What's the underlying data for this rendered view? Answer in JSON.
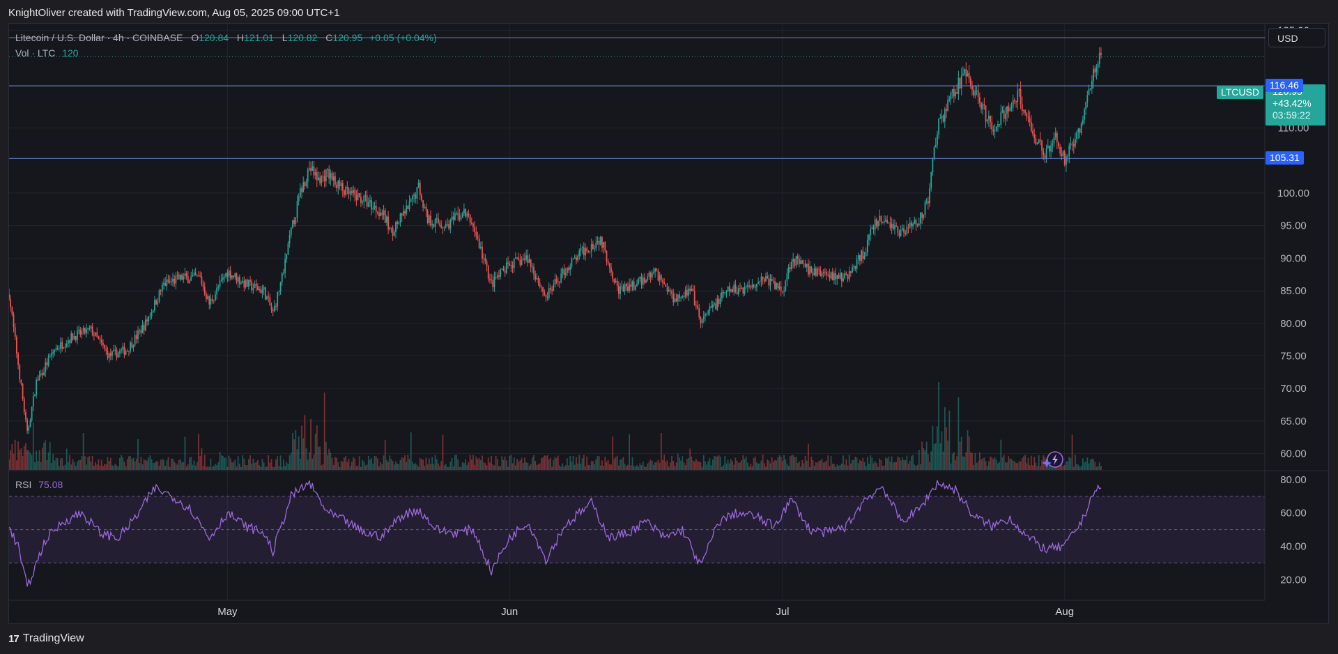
{
  "caption": "KnightOliver created with TradingView.com, Aug 05, 2025 09:00 UTC+1",
  "legend": {
    "symbol_name": "Litecoin / U.S. Dollar · 4h · COINBASE",
    "open_label": "O",
    "open": "120.84",
    "high_label": "H",
    "high": "121.01",
    "low_label": "L",
    "low": "120.82",
    "close_label": "C",
    "close": "120.95",
    "change": "+0.05 (+0.04%)",
    "volume_label": "Vol · LTC",
    "volume_value": "120",
    "rsi_label": "RSI",
    "rsi_value": "75.08"
  },
  "currency": "USD",
  "price_box": {
    "symbol": "LTCUSD",
    "last": "120.95",
    "change_pct": "+43.42%",
    "countdown": "03:59:22"
  },
  "horizontal_levels": [
    {
      "label": "116.46",
      "value": 116.46
    },
    {
      "label": "105.31",
      "value": 105.31
    }
  ],
  "footer_brand": "TradingView",
  "colors": {
    "background": "#16161d",
    "up": "#26a69a",
    "down": "#ef5350",
    "rsi_line": "#9c6ade",
    "level_line": "#5b7bd6",
    "level_tag": "#2962ff"
  },
  "chart_data": [
    {
      "type": "candlestick",
      "title": "Litecoin / U.S. Dollar · 4h · COINBASE",
      "ylim": [
        57.5,
        126
      ],
      "y_ticks": [
        125,
        110,
        100,
        95,
        90,
        85,
        80,
        75,
        70,
        65,
        60
      ],
      "y_tick_labels": [
        "125.00",
        "110.00",
        "100.00",
        "95.00",
        "90.00",
        "85.00",
        "80.00",
        "75.00",
        "70.00",
        "65.00",
        "60.00"
      ],
      "x_tick_labels": [
        "May",
        "Jun",
        "Jul",
        "Aug"
      ],
      "x_tick_dates": [
        "2025-05-01",
        "2025-06-01",
        "2025-07-01",
        "2025-08-01"
      ],
      "x_range": [
        "2025-04-07",
        "2025-08-23"
      ],
      "grid": true,
      "price_path": [
        [
          "2025-04-07",
          84.5
        ],
        [
          "2025-04-09",
          63
        ],
        [
          "2025-04-10",
          71
        ],
        [
          "2025-04-12",
          76
        ],
        [
          "2025-04-14",
          78
        ],
        [
          "2025-04-16",
          79
        ],
        [
          "2025-04-18",
          75
        ],
        [
          "2025-04-20",
          76
        ],
        [
          "2025-04-22",
          80
        ],
        [
          "2025-04-24",
          86
        ],
        [
          "2025-04-26",
          87
        ],
        [
          "2025-04-28",
          87
        ],
        [
          "2025-04-29",
          83
        ],
        [
          "2025-05-01",
          88
        ],
        [
          "2025-05-03",
          86
        ],
        [
          "2025-05-05",
          85
        ],
        [
          "2025-05-06",
          81.5
        ],
        [
          "2025-05-07",
          87
        ],
        [
          "2025-05-08",
          94
        ],
        [
          "2025-05-09",
          100
        ],
        [
          "2025-05-10",
          104
        ],
        [
          "2025-05-11",
          102
        ],
        [
          "2025-05-12",
          103
        ],
        [
          "2025-05-14",
          100
        ],
        [
          "2025-05-16",
          99
        ],
        [
          "2025-05-18",
          97
        ],
        [
          "2025-05-19",
          94
        ],
        [
          "2025-05-21",
          98
        ],
        [
          "2025-05-22",
          101
        ],
        [
          "2025-05-23",
          96
        ],
        [
          "2025-05-25",
          95
        ],
        [
          "2025-05-27",
          97
        ],
        [
          "2025-05-28",
          95
        ],
        [
          "2025-05-30",
          86
        ],
        [
          "2025-06-01",
          89
        ],
        [
          "2025-06-03",
          90
        ],
        [
          "2025-06-05",
          84
        ],
        [
          "2025-06-07",
          88
        ],
        [
          "2025-06-09",
          91
        ],
        [
          "2025-06-11",
          93
        ],
        [
          "2025-06-13",
          85
        ],
        [
          "2025-06-15",
          86
        ],
        [
          "2025-06-17",
          88
        ],
        [
          "2025-06-19",
          84
        ],
        [
          "2025-06-21",
          85
        ],
        [
          "2025-06-22",
          80
        ],
        [
          "2025-06-23",
          82
        ],
        [
          "2025-06-25",
          85
        ],
        [
          "2025-06-27",
          85.5
        ],
        [
          "2025-06-29",
          87
        ],
        [
          "2025-07-01",
          85
        ],
        [
          "2025-07-02",
          90
        ],
        [
          "2025-07-04",
          88
        ],
        [
          "2025-07-06",
          87.5
        ],
        [
          "2025-07-08",
          87
        ],
        [
          "2025-07-10",
          91
        ],
        [
          "2025-07-11",
          95
        ],
        [
          "2025-07-12",
          96
        ],
        [
          "2025-07-14",
          94
        ],
        [
          "2025-07-16",
          96
        ],
        [
          "2025-07-17",
          99
        ],
        [
          "2025-07-18",
          110
        ],
        [
          "2025-07-20",
          116
        ],
        [
          "2025-07-21",
          118
        ],
        [
          "2025-07-22",
          116
        ],
        [
          "2025-07-23",
          113
        ],
        [
          "2025-07-24",
          110
        ],
        [
          "2025-07-26",
          113
        ],
        [
          "2025-07-27",
          115
        ],
        [
          "2025-07-28",
          111
        ],
        [
          "2025-07-29",
          108
        ],
        [
          "2025-07-30",
          106
        ],
        [
          "2025-07-31",
          109
        ],
        [
          "2025-08-01",
          105
        ],
        [
          "2025-08-02",
          108
        ],
        [
          "2025-08-03",
          111
        ],
        [
          "2025-08-04",
          118
        ],
        [
          "2025-08-05",
          120.95
        ]
      ]
    },
    {
      "type": "line",
      "title": "RSI",
      "ylim": [
        8,
        85
      ],
      "y_ticks": [
        80,
        60,
        40,
        20
      ],
      "y_tick_labels": [
        "80.00",
        "60.00",
        "40.00",
        "20.00"
      ],
      "bands": [
        70,
        50,
        30
      ],
      "series": [
        {
          "name": "RSI",
          "points": [
            [
              "2025-04-07",
              51
            ],
            [
              "2025-04-08",
              40
            ],
            [
              "2025-04-09",
              15
            ],
            [
              "2025-04-11",
              44
            ],
            [
              "2025-04-13",
              55
            ],
            [
              "2025-04-15",
              60
            ],
            [
              "2025-04-17",
              48
            ],
            [
              "2025-04-19",
              45
            ],
            [
              "2025-04-21",
              58
            ],
            [
              "2025-04-23",
              75
            ],
            [
              "2025-04-25",
              70
            ],
            [
              "2025-04-27",
              62
            ],
            [
              "2025-04-29",
              45
            ],
            [
              "2025-05-01",
              60
            ],
            [
              "2025-05-03",
              52
            ],
            [
              "2025-05-05",
              48
            ],
            [
              "2025-05-06",
              37
            ],
            [
              "2025-05-08",
              70
            ],
            [
              "2025-05-10",
              78
            ],
            [
              "2025-05-12",
              60
            ],
            [
              "2025-05-14",
              55
            ],
            [
              "2025-05-16",
              48
            ],
            [
              "2025-05-18",
              46
            ],
            [
              "2025-05-20",
              58
            ],
            [
              "2025-05-22",
              62
            ],
            [
              "2025-05-24",
              50
            ],
            [
              "2025-05-26",
              48
            ],
            [
              "2025-05-28",
              50
            ],
            [
              "2025-05-30",
              25
            ],
            [
              "2025-06-01",
              45
            ],
            [
              "2025-06-03",
              55
            ],
            [
              "2025-06-05",
              32
            ],
            [
              "2025-06-07",
              52
            ],
            [
              "2025-06-10",
              66
            ],
            [
              "2025-06-12",
              45
            ],
            [
              "2025-06-14",
              48
            ],
            [
              "2025-06-16",
              55
            ],
            [
              "2025-06-18",
              45
            ],
            [
              "2025-06-20",
              50
            ],
            [
              "2025-06-22",
              28
            ],
            [
              "2025-06-24",
              55
            ],
            [
              "2025-06-26",
              60
            ],
            [
              "2025-06-28",
              58
            ],
            [
              "2025-06-30",
              52
            ],
            [
              "2025-07-02",
              68
            ],
            [
              "2025-07-04",
              50
            ],
            [
              "2025-07-06",
              48
            ],
            [
              "2025-07-08",
              52
            ],
            [
              "2025-07-10",
              68
            ],
            [
              "2025-07-12",
              76
            ],
            [
              "2025-07-14",
              55
            ],
            [
              "2025-07-16",
              62
            ],
            [
              "2025-07-18",
              78
            ],
            [
              "2025-07-20",
              74
            ],
            [
              "2025-07-22",
              58
            ],
            [
              "2025-07-24",
              52
            ],
            [
              "2025-07-26",
              57
            ],
            [
              "2025-07-28",
              45
            ],
            [
              "2025-07-30",
              38
            ],
            [
              "2025-08-01",
              40
            ],
            [
              "2025-08-03",
              56
            ],
            [
              "2025-08-04",
              71
            ],
            [
              "2025-08-05",
              75.08
            ]
          ]
        }
      ]
    },
    {
      "type": "bar",
      "title": "Vol · LTC",
      "note": "volume histogram along the bottom of the price pane",
      "values_shape": "many small bars with spikes near 2025-04-09, 2025-05-10, 2025-07-20"
    }
  ]
}
